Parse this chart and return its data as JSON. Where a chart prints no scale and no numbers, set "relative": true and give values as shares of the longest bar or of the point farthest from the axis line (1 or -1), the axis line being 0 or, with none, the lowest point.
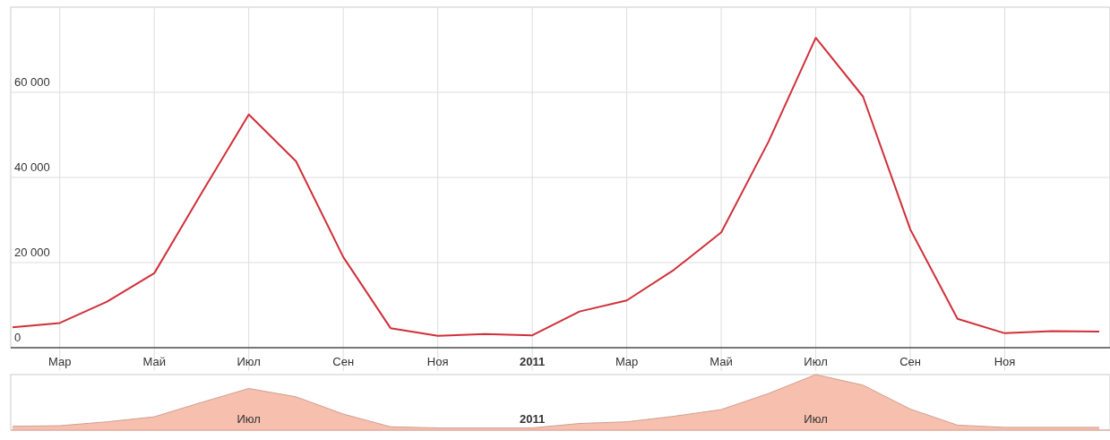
{
  "chart_data": [
    {
      "type": "line",
      "categories": [
        null,
        "Мар",
        null,
        "Май",
        null,
        "Июл",
        null,
        "Сен",
        null,
        "Ноя",
        null,
        "2011",
        null,
        "Мар",
        null,
        "Май",
        null,
        "Июл",
        null,
        "Сен",
        null,
        "Ноя",
        null,
        null
      ],
      "series": [
        {
          "color": "#d0303a",
          "values": [
            4800,
            5800,
            10800,
            17500,
            36300,
            54800,
            43800,
            21300,
            4600,
            2800,
            3200,
            2900,
            8500,
            11100,
            18300,
            27100,
            48400,
            72800,
            59000,
            27800,
            6800,
            3400,
            3900,
            3800
          ]
        }
      ],
      "ylim": [
        0,
        80000
      ],
      "yticks": [
        0,
        {
          "value": 20000,
          "label": "20 000"
        },
        {
          "value": 40000,
          "label": "40 000"
        },
        {
          "value": 60000,
          "label": "60 000"
        }
      ],
      "grid": true,
      "marker": "none"
    },
    {
      "type": "area",
      "relative": true,
      "tick_labels": "x",
      "categories": [
        null,
        null,
        null,
        null,
        null,
        "Июл",
        null,
        null,
        null,
        null,
        null,
        "2011",
        null,
        null,
        null,
        null,
        null,
        "Июл",
        null,
        null,
        null,
        null,
        null,
        null
      ],
      "series": [
        {
          "color": "#f7bfae",
          "values": [
            0.07,
            0.08,
            0.15,
            0.24,
            0.5,
            0.75,
            0.6,
            0.29,
            0.06,
            0.04,
            0.04,
            0.04,
            0.12,
            0.15,
            0.25,
            0.37,
            0.66,
            1,
            0.81,
            0.38,
            0.09,
            0.05,
            0.05,
            0.05
          ]
        }
      ],
      "grid": false
    }
  ]
}
